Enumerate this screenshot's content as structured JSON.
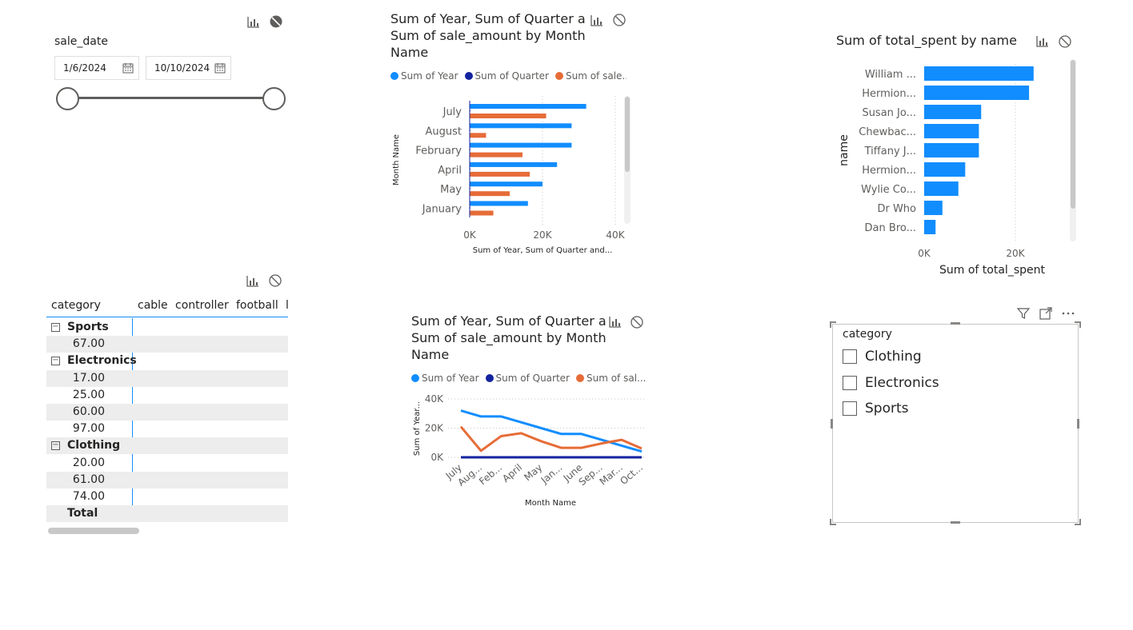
{
  "colors": {
    "series_year": "#118dff",
    "series_quarter": "#12239e",
    "series_sale": "#e66c37",
    "bar": "#118dff"
  },
  "icons": [
    "drill-icon",
    "no-filter-icon",
    "filter-icon",
    "focus-mode-icon",
    "more-options-icon",
    "calendar-icon",
    "collapse-icon"
  ],
  "date_slicer": {
    "title": "sale_date",
    "start": "1/6/2024",
    "end": "10/10/2024"
  },
  "bar_chart_1": {
    "title_line1": "Sum of Year, Sum of Quarter a",
    "title_line2": "Sum of sale_amount by Month",
    "title_line3": "Name",
    "legend": [
      "Sum of Year",
      "Sum of Quarter",
      "Sum of sale..."
    ]
  },
  "bar_chart_2": {
    "title": "Sum of total_spent by name"
  },
  "matrix": {
    "headers": [
      "category",
      "cable",
      "controller",
      "football",
      "l"
    ],
    "rows": [
      {
        "type": "group",
        "label": "Sports"
      },
      {
        "type": "value",
        "label": "67.00"
      },
      {
        "type": "group",
        "label": "Electronics"
      },
      {
        "type": "value",
        "label": "17.00"
      },
      {
        "type": "value",
        "label": "25.00"
      },
      {
        "type": "value",
        "label": "60.00"
      },
      {
        "type": "value",
        "label": "97.00"
      },
      {
        "type": "group",
        "label": "Clothing"
      },
      {
        "type": "value",
        "label": "20.00"
      },
      {
        "type": "value",
        "label": "61.00"
      },
      {
        "type": "value",
        "label": "74.00"
      },
      {
        "type": "total",
        "label": "Total"
      }
    ],
    "collapse_symbol": "⊟"
  },
  "line_chart": {
    "title_line1": "Sum of Year, Sum of Quarter a",
    "title_line2": "Sum of sale_amount by Month",
    "title_line3": "Name",
    "legend": [
      "Sum of Year",
      "Sum of Quarter",
      "Sum of sal..."
    ]
  },
  "category_slicer": {
    "title": "category",
    "items": [
      "Clothing",
      "Electronics",
      "Sports"
    ]
  },
  "chart_data": [
    {
      "type": "bar",
      "orientation": "horizontal",
      "categories": [
        "July",
        "August",
        "February",
        "April",
        "May",
        "January"
      ],
      "series": [
        {
          "name": "Sum of Year",
          "values": [
            32000,
            28000,
            28000,
            24000,
            20000,
            16000
          ]
        },
        {
          "name": "Sum of Quarter",
          "values": [
            6,
            6,
            2,
            4,
            4,
            2
          ]
        },
        {
          "name": "Sum of sale...",
          "values": [
            21000,
            4500,
            14500,
            16500,
            11000,
            6500
          ]
        }
      ],
      "xlabel": "Sum of Year, Sum of Quarter and...",
      "ylabel": "Month Name",
      "x_ticks": [
        "0K",
        "20K",
        "40K"
      ],
      "xlim": [
        0,
        40000
      ],
      "grid": true,
      "legend_position": "top"
    },
    {
      "type": "bar",
      "orientation": "horizontal",
      "categories": [
        "William ...",
        "Hermion...",
        "Susan Jo...",
        "Chewbac...",
        "Tiffany J...",
        "Hermion...",
        "Wylie Co...",
        "Dr Who",
        "Dan Bro..."
      ],
      "values": [
        24000,
        23000,
        12500,
        12000,
        12000,
        9000,
        7500,
        4000,
        2500
      ],
      "xlabel": "Sum of total_spent",
      "ylabel": "name",
      "x_ticks": [
        "0K",
        "20K"
      ],
      "xlim": [
        0,
        33000
      ],
      "grid": true
    },
    {
      "type": "line",
      "categories": [
        "July",
        "Aug...",
        "Feb...",
        "April",
        "May",
        "Jan...",
        "June",
        "Sep...",
        "Mar...",
        "Oct..."
      ],
      "series": [
        {
          "name": "Sum of Year",
          "values": [
            32000,
            28000,
            28000,
            24000,
            20000,
            16000,
            16000,
            12000,
            8000,
            4000
          ]
        },
        {
          "name": "Sum of Quarter",
          "values": [
            6,
            6,
            2,
            4,
            4,
            2,
            4,
            6,
            2,
            8
          ]
        },
        {
          "name": "Sum of sal...",
          "values": [
            21000,
            4500,
            14500,
            16500,
            11000,
            6500,
            6500,
            9500,
            12000,
            6000
          ]
        }
      ],
      "xlabel": "Month Name",
      "ylabel": "Sum of Year...",
      "y_ticks": [
        "0K",
        "20K",
        "40K"
      ],
      "ylim": [
        0,
        40000
      ],
      "grid": true,
      "legend_position": "top"
    }
  ]
}
